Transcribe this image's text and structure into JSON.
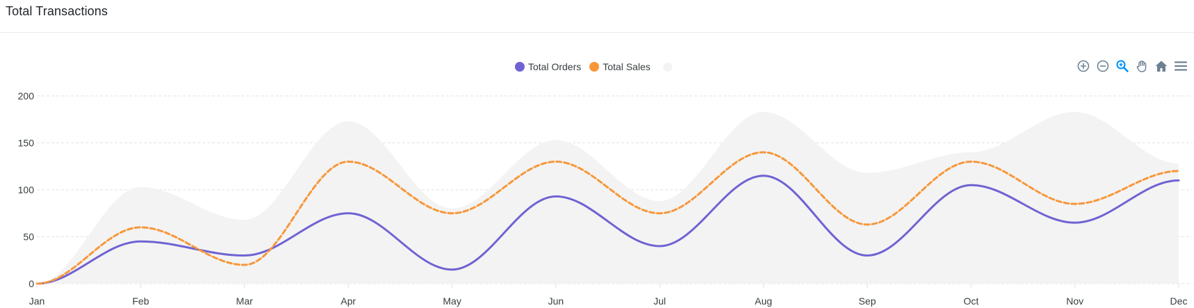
{
  "header": {
    "title": "Total Transactions"
  },
  "toolbar": {
    "tools": [
      "zoom-in-icon",
      "zoom-out-icon",
      "selection-zoom-icon",
      "pan-icon",
      "reset-home-icon",
      "menu-icon"
    ],
    "colors": {
      "default": "#6e8192",
      "active": "#008ffb"
    }
  },
  "chart_data": {
    "type": "area",
    "title": "",
    "xlabel": "",
    "ylabel": "",
    "categories": [
      "Jan",
      "Feb",
      "Mar",
      "Apr",
      "May",
      "Jun",
      "Jul",
      "Aug",
      "Sep",
      "Oct",
      "Nov",
      "Dec"
    ],
    "ylim": [
      0,
      200
    ],
    "yticks": [
      0,
      50,
      100,
      150,
      200
    ],
    "grid": true,
    "legend_position": "top",
    "series": [
      {
        "name": "Total Orders",
        "kind": "line",
        "dashed": false,
        "color": "#6f63d3",
        "values": [
          0,
          45,
          30,
          75,
          15,
          93,
          40,
          115,
          30,
          105,
          65,
          110
        ]
      },
      {
        "name": "Total Sales",
        "kind": "line",
        "dashed": true,
        "color": "#f7973a",
        "values": [
          0,
          60,
          20,
          130,
          75,
          130,
          75,
          140,
          63,
          130,
          85,
          120
        ]
      },
      {
        "name": "",
        "kind": "area",
        "dashed": false,
        "color": "#f3f3f3",
        "values": [
          0,
          103,
          68,
          173,
          80,
          153,
          88,
          183,
          118,
          140,
          183,
          128
        ]
      }
    ]
  }
}
